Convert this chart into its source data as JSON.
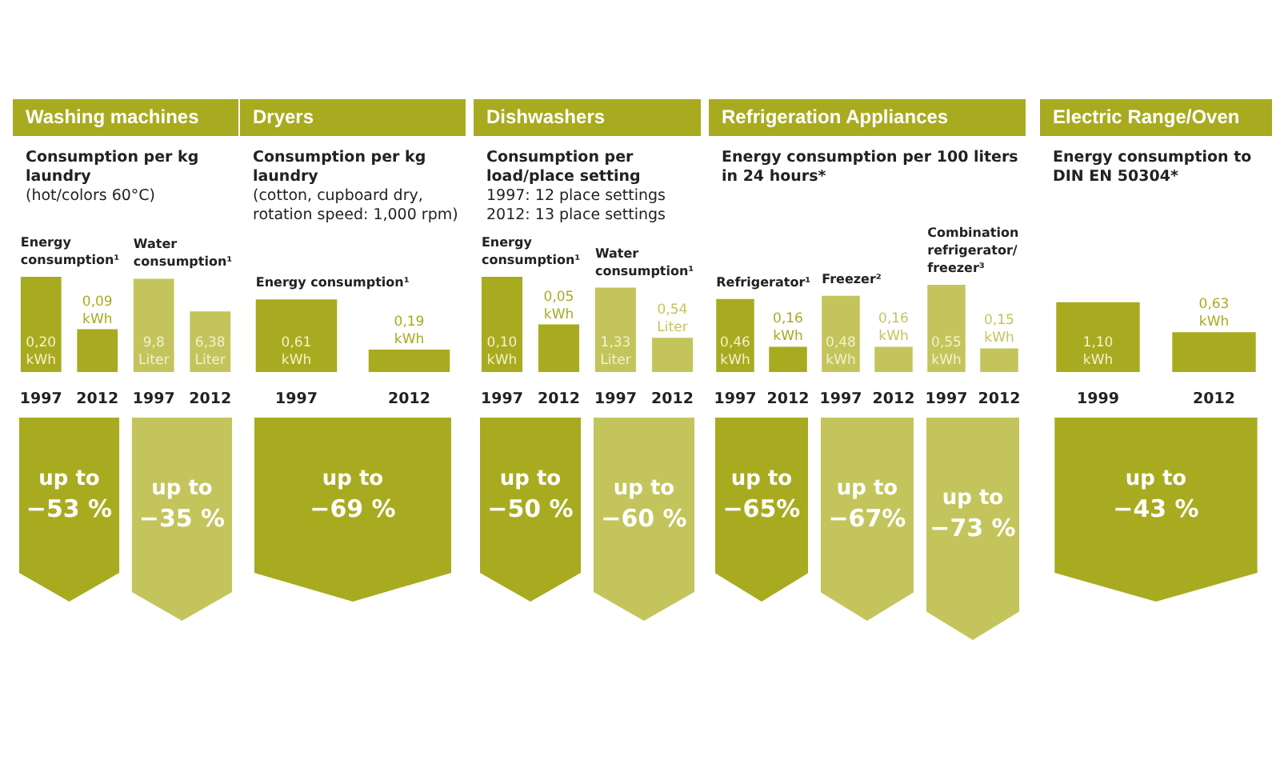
{
  "chart_data": [
    {
      "type": "bar",
      "title": "Washing machines",
      "subtitle": "Consumption per kg laundry\n(hot/colors 60°C)",
      "categories": [
        "1997",
        "2012",
        "1997",
        "2012"
      ],
      "tick_labels": "x",
      "legend": false,
      "series": [
        {
          "name": "Energy consumption¹",
          "color": "#a8ab1f",
          "values": [
            0.2,
            0.09,
            null,
            null
          ],
          "value_labels": [
            "0,20\nkWh",
            "0,09\nkWh",
            null,
            null
          ]
        },
        {
          "name": "Water consumption¹",
          "color": "#c3c55c",
          "axis": "y2",
          "values": [
            null,
            null,
            9.8,
            6.38
          ],
          "value_labels": [
            null,
            null,
            "9,8\nLiter",
            "6,38\nLiter"
          ]
        }
      ],
      "annotations": [
        "up to\n−53 %",
        "up to\n−35 %"
      ]
    },
    {
      "type": "bar",
      "title": "Dryers",
      "subtitle": "Consumption per kg laundry\n(cotton, cupboard dry, rotation speed: 1,000 rpm)",
      "categories": [
        "1997",
        "2012"
      ],
      "tick_labels": "x",
      "legend": false,
      "series": [
        {
          "name": "Energy consumption¹",
          "color": "#a8ab1f",
          "values": [
            0.61,
            0.19
          ],
          "value_labels": [
            "0,61\nkWh",
            "0,19\nkWh"
          ]
        }
      ],
      "annotations": [
        "up to\n−69 %"
      ]
    },
    {
      "type": "bar",
      "title": "Dishwashers",
      "subtitle": "Consumption per load/place setting\n1997: 12 place settings\n2012: 13 place settings",
      "categories": [
        "1997",
        "2012",
        "1997",
        "2012"
      ],
      "tick_labels": "x",
      "legend": false,
      "series": [
        {
          "name": "Energy consumption¹",
          "color": "#a8ab1f",
          "values": [
            0.1,
            0.05,
            null,
            null
          ],
          "value_labels": [
            "0,10\nkWh",
            "0,05\nkWh",
            null,
            null
          ]
        },
        {
          "name": "Water consumption¹",
          "color": "#c3c55c",
          "axis": "y2",
          "values": [
            null,
            null,
            1.33,
            0.54
          ],
          "value_labels": [
            null,
            null,
            "1,33\nLiter",
            "0,54\nLiter"
          ]
        }
      ],
      "annotations": [
        "up to\n−50 %",
        "up to\n−60 %"
      ]
    },
    {
      "type": "bar",
      "title": "Refrigeration Appliances",
      "subtitle": "Energy consumption per 100 liters in 24 hours*",
      "categories": [
        "1997",
        "2012",
        "1997",
        "2012",
        "1997",
        "2012"
      ],
      "tick_labels": "x",
      "legend": false,
      "series": [
        {
          "name": "Refrigerator¹",
          "color": "#a8ab1f",
          "values": [
            0.46,
            0.16,
            null,
            null,
            null,
            null
          ],
          "value_labels": [
            "0,46\nkWh",
            "0,16\nkWh",
            null,
            null,
            null,
            null
          ]
        },
        {
          "name": "Freezer²",
          "color": "#c3c55c",
          "values": [
            null,
            null,
            0.48,
            0.16,
            null,
            null
          ],
          "value_labels": [
            null,
            null,
            "0,48\nkWh",
            "0,16\nkWh",
            null,
            null
          ]
        },
        {
          "name": "Combination refrigerator/ freezer³",
          "color": "#c3c55c",
          "values": [
            null,
            null,
            null,
            null,
            0.55,
            0.15
          ],
          "value_labels": [
            null,
            null,
            null,
            null,
            "0,55\nkWh",
            "0,15\nkWh"
          ]
        }
      ],
      "annotations": [
        "up to\n−65%",
        "up to\n−67%",
        "up to\n−73 %"
      ]
    },
    {
      "type": "bar",
      "title": "Electric Range/Oven",
      "subtitle": "Energy consumption to DIN EN 50304*",
      "categories": [
        "1999",
        "2012"
      ],
      "tick_labels": "x",
      "legend": false,
      "series": [
        {
          "color": "#a8ab1f",
          "values": [
            1.1,
            0.63
          ],
          "value_labels": [
            "1,10\nkWh",
            "0,63\nkWh"
          ]
        }
      ],
      "annotations": [
        "up to\n−43 %"
      ]
    }
  ]
}
